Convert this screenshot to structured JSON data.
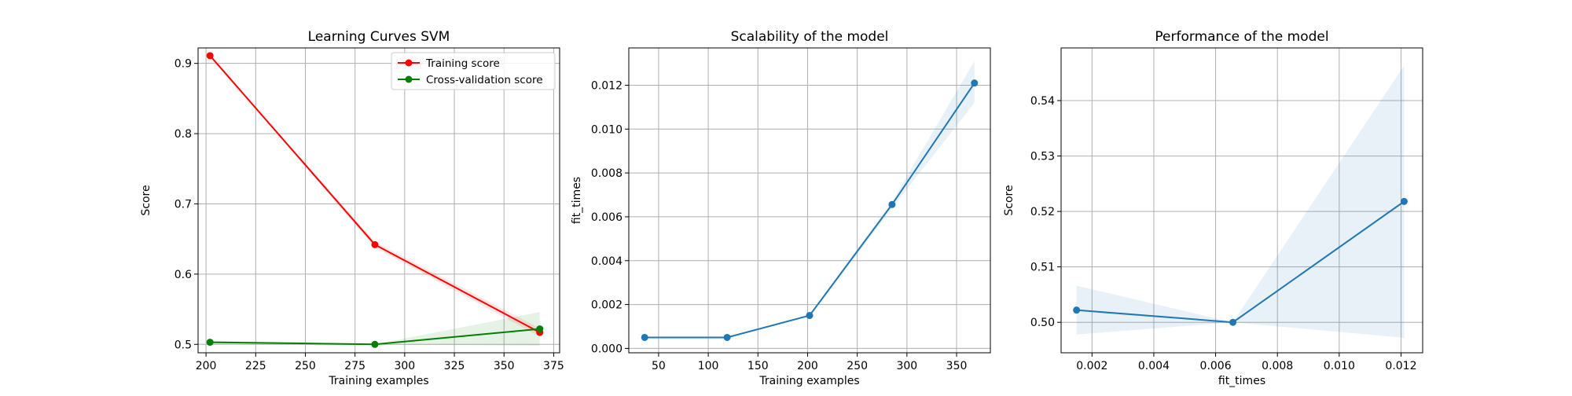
{
  "chart_data": [
    {
      "type": "line",
      "title": "Learning Curves SVM",
      "xlabel": "Training examples",
      "ylabel": "Score",
      "xlim": [
        196,
        378
      ],
      "ylim": [
        0.488,
        0.922
      ],
      "xticks": [
        "200",
        "225",
        "250",
        "275",
        "300",
        "325",
        "350",
        "375"
      ],
      "yticks": [
        "0.5",
        "0.6",
        "0.7",
        "0.8",
        "0.9"
      ],
      "grid": true,
      "legend_position": "upper right",
      "series": [
        {
          "name": "Training score",
          "color": "#ff0000",
          "x": [
            202,
            285,
            368
          ],
          "y": [
            0.911,
            0.642,
            0.517
          ],
          "band_lower": [
            0.911,
            0.638,
            0.511
          ],
          "band_upper": [
            0.911,
            0.646,
            0.523
          ]
        },
        {
          "name": "Cross-validation score",
          "color": "#008000",
          "x": [
            202,
            285,
            368
          ],
          "y": [
            0.503,
            0.5,
            0.522
          ],
          "band_lower": [
            0.501,
            0.5,
            0.498
          ],
          "band_upper": [
            0.505,
            0.5,
            0.546
          ]
        }
      ]
    },
    {
      "type": "line",
      "title": "Scalability of the model",
      "xlabel": "Training examples",
      "ylabel": "fit_times",
      "xlim": [
        20,
        384
      ],
      "ylim": [
        -0.0002,
        0.0137
      ],
      "xticks": [
        "50",
        "100",
        "150",
        "200",
        "250",
        "300",
        "350"
      ],
      "yticks": [
        "0.000",
        "0.002",
        "0.004",
        "0.006",
        "0.008",
        "0.010",
        "0.012"
      ],
      "grid": true,
      "series": [
        {
          "color": "#1f77b4",
          "x": [
            36,
            119,
            202,
            285,
            368
          ],
          "y": [
            0.0005,
            0.0005,
            0.0015,
            0.00656,
            0.0121
          ],
          "band_lower": [
            0.00048,
            0.00048,
            0.00145,
            0.0064,
            0.0112
          ],
          "band_upper": [
            0.00052,
            0.00052,
            0.00155,
            0.0067,
            0.0131
          ]
        }
      ]
    },
    {
      "type": "line",
      "title": "Performance of the model",
      "xlabel": "fit_times",
      "ylabel": "Score",
      "xlim": [
        0.001,
        0.0127
      ],
      "ylim": [
        0.4945,
        0.5495
      ],
      "xticks": [
        "0.002",
        "0.004",
        "0.006",
        "0.008",
        "0.010",
        "0.012"
      ],
      "yticks": [
        "0.50",
        "0.51",
        "0.52",
        "0.53",
        "0.54"
      ],
      "grid": true,
      "series": [
        {
          "color": "#1f77b4",
          "x": [
            0.0015,
            0.00656,
            0.0121
          ],
          "y": [
            0.5022,
            0.5,
            0.5218
          ],
          "band_lower": [
            0.4978,
            0.5,
            0.4972
          ],
          "band_upper": [
            0.5066,
            0.5,
            0.5463
          ]
        }
      ]
    }
  ]
}
